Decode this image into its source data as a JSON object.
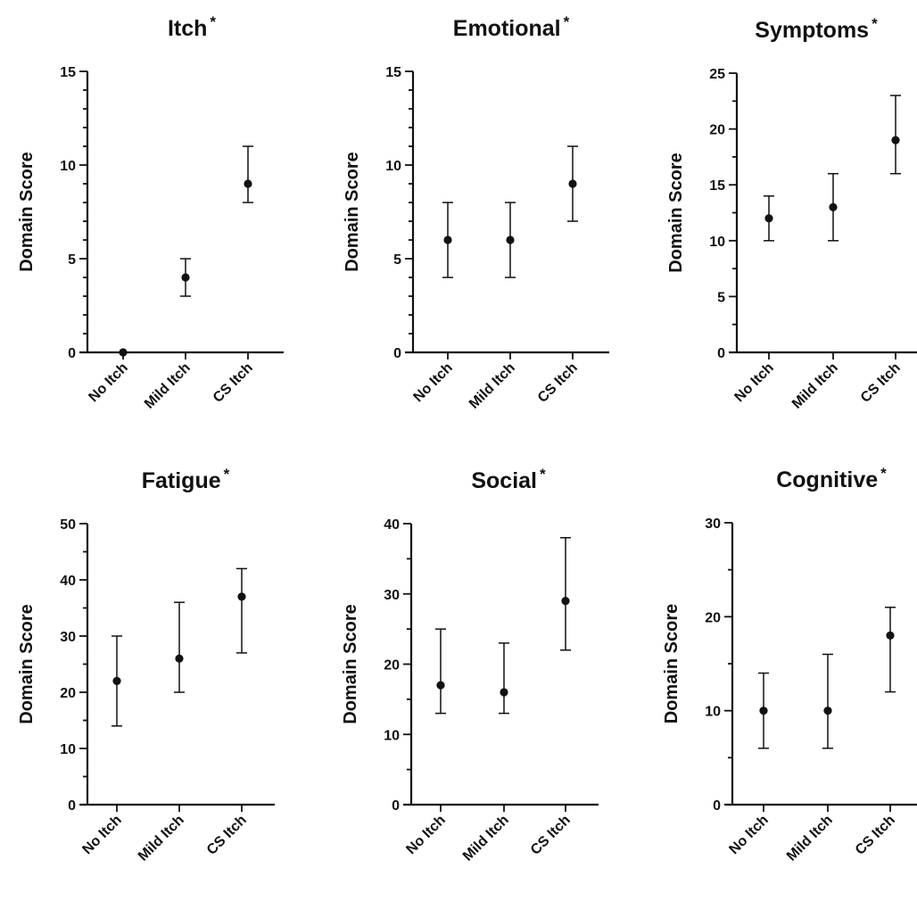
{
  "chart_data": [
    {
      "type": "scatter",
      "title": "Itch",
      "title_marker": "*",
      "ylabel": "Domain Score",
      "categories": [
        "No Itch",
        "Mild Itch",
        "CS Itch"
      ],
      "ylim": [
        0,
        15
      ],
      "yticks": [
        0,
        5,
        10,
        15
      ],
      "minor_step": 1,
      "series": [
        {
          "values": [
            0,
            4,
            9
          ],
          "err_low": [
            0,
            3,
            8
          ],
          "err_high": [
            0,
            5,
            11
          ]
        }
      ]
    },
    {
      "type": "scatter",
      "title": "Emotional",
      "title_marker": "*",
      "ylabel": "Domain Score",
      "categories": [
        "No Itch",
        "Mild Itch",
        "CS Itch"
      ],
      "ylim": [
        0,
        15
      ],
      "yticks": [
        0,
        5,
        10,
        15
      ],
      "minor_step": 1,
      "series": [
        {
          "values": [
            6,
            6,
            9
          ],
          "err_low": [
            4,
            4,
            7
          ],
          "err_high": [
            8,
            8,
            11
          ]
        }
      ]
    },
    {
      "type": "scatter",
      "title": "Symptoms",
      "title_marker": "*",
      "ylabel": "Domain Score",
      "categories": [
        "No Itch",
        "Mild Itch",
        "CS Itch"
      ],
      "ylim": [
        0,
        25
      ],
      "yticks": [
        0,
        5,
        10,
        15,
        20,
        25
      ],
      "minor_step": 2.5,
      "series": [
        {
          "values": [
            12,
            13,
            19
          ],
          "err_low": [
            10,
            10,
            16
          ],
          "err_high": [
            14,
            16,
            23
          ]
        }
      ]
    },
    {
      "type": "scatter",
      "title": "Fatigue",
      "title_marker": "*",
      "ylabel": "Domain Score",
      "categories": [
        "No Itch",
        "Mild Itch",
        "CS Itch"
      ],
      "ylim": [
        0,
        50
      ],
      "yticks": [
        0,
        10,
        20,
        30,
        40,
        50
      ],
      "minor_step": 5,
      "series": [
        {
          "values": [
            22,
            26,
            37
          ],
          "err_low": [
            14,
            20,
            27
          ],
          "err_high": [
            30,
            36,
            42
          ]
        }
      ]
    },
    {
      "type": "scatter",
      "title": "Social",
      "title_marker": "*",
      "ylabel": "Domain Score",
      "categories": [
        "No Itch",
        "Mild Itch",
        "CS Itch"
      ],
      "ylim": [
        0,
        40
      ],
      "yticks": [
        0,
        10,
        20,
        30,
        40
      ],
      "minor_step": 5,
      "series": [
        {
          "values": [
            17,
            16,
            29
          ],
          "err_low": [
            13,
            13,
            22
          ],
          "err_high": [
            25,
            23,
            38
          ]
        }
      ]
    },
    {
      "type": "scatter",
      "title": "Cognitive",
      "title_marker": "*",
      "ylabel": "Domain Score",
      "categories": [
        "No Itch",
        "Mild Itch",
        "CS Itch"
      ],
      "ylim": [
        0,
        30
      ],
      "yticks": [
        0,
        10,
        20,
        30
      ],
      "minor_step": 5,
      "series": [
        {
          "values": [
            10,
            10,
            18
          ],
          "err_low": [
            6,
            6,
            12
          ],
          "err_high": [
            14,
            16,
            21
          ]
        }
      ]
    }
  ]
}
